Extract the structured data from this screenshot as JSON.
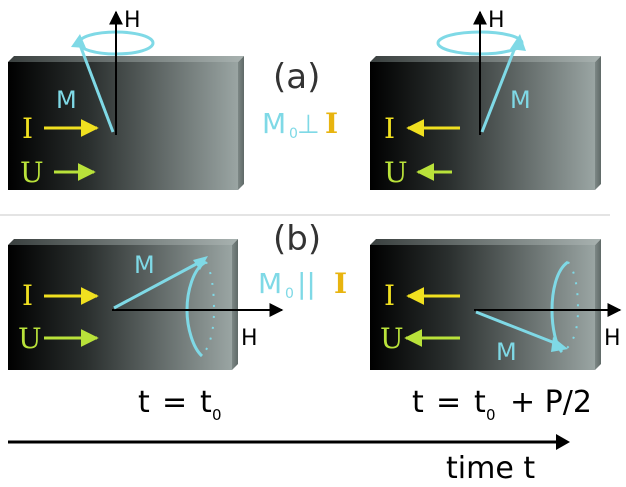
{
  "panel_a": {
    "label": "(a)",
    "relation": {
      "m_sym": "M",
      "m_sub": "0",
      "op": "⊥",
      "i_sym": "I"
    },
    "left": {
      "h_label": "H",
      "m_label": "M",
      "i_label": "I",
      "u_label": "U",
      "current_dir": "right"
    },
    "right": {
      "h_label": "H",
      "m_label": "M",
      "i_label": "I",
      "u_label": "U",
      "current_dir": "left"
    }
  },
  "panel_b": {
    "label": "(b)",
    "relation": {
      "m_sym": "M",
      "m_sub": "0",
      "op": "||",
      "i_sym": "I"
    },
    "left": {
      "h_label": "H",
      "m_label": "M",
      "i_label": "I",
      "u_label": "U",
      "current_dir": "right"
    },
    "right": {
      "h_label": "H",
      "m_label": "M",
      "i_label": "I",
      "u_label": "U",
      "current_dir": "left"
    }
  },
  "time_labels": {
    "t0": {
      "t": "t",
      "eq": "=",
      "t0": "t",
      "sub": "0"
    },
    "t1": {
      "t": "t",
      "eq": "=",
      "t0": "t",
      "sub": "0",
      "plus": "+ P/2"
    }
  },
  "time_axis": {
    "label": "time t"
  },
  "colors": {
    "magnetization": "#7fd9e6",
    "current": "#f0e020",
    "current_label": "#e8c21a",
    "voltage": "#b9e23a",
    "field": "#000000",
    "block_dark": "#000000",
    "block_light": "#8f9a98",
    "relation_m": "#7fd9e6",
    "relation_i": "#e8b40f",
    "divider": "#e4e4e4"
  }
}
